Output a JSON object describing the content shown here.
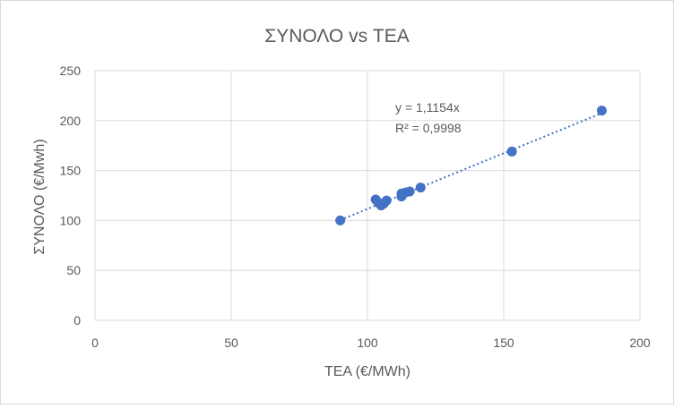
{
  "chart_data": {
    "type": "scatter",
    "title": "ΣΥΝΟΛΟ vs ΤΕΑ",
    "xlabel": "ΤΕΑ (€/MWh)",
    "ylabel": "ΣΥΝΟΛΟ (€/Mwh)",
    "xlim": [
      0,
      200
    ],
    "ylim": [
      0,
      250
    ],
    "xticks": [
      0,
      50,
      100,
      150,
      200
    ],
    "yticks": [
      0,
      50,
      100,
      150,
      200,
      250
    ],
    "xtick_labels": [
      "0",
      "50",
      "100",
      "150",
      "200"
    ],
    "ytick_labels": [
      "0",
      "50",
      "100",
      "150",
      "200",
      "250"
    ],
    "grid": true,
    "legend": "none",
    "series": [
      {
        "color": "#4472c4",
        "points": [
          {
            "x": 90,
            "y": 100
          },
          {
            "x": 103,
            "y": 121
          },
          {
            "x": 104,
            "y": 118
          },
          {
            "x": 105,
            "y": 115
          },
          {
            "x": 106,
            "y": 117
          },
          {
            "x": 107,
            "y": 120
          },
          {
            "x": 112.5,
            "y": 124
          },
          {
            "x": 112.5,
            "y": 127
          },
          {
            "x": 114,
            "y": 128
          },
          {
            "x": 115.5,
            "y": 129
          },
          {
            "x": 119.5,
            "y": 133
          },
          {
            "x": 153,
            "y": 169
          },
          {
            "x": 186,
            "y": 210
          }
        ]
      }
    ],
    "trendline": {
      "type": "linear-through-origin",
      "slope": 1.1154,
      "style": "dotted",
      "color": "#4472c4",
      "x_range": [
        90,
        186
      ],
      "equation_label": "y = 1,1154x",
      "r2_label": "R² = 0,9998"
    }
  }
}
